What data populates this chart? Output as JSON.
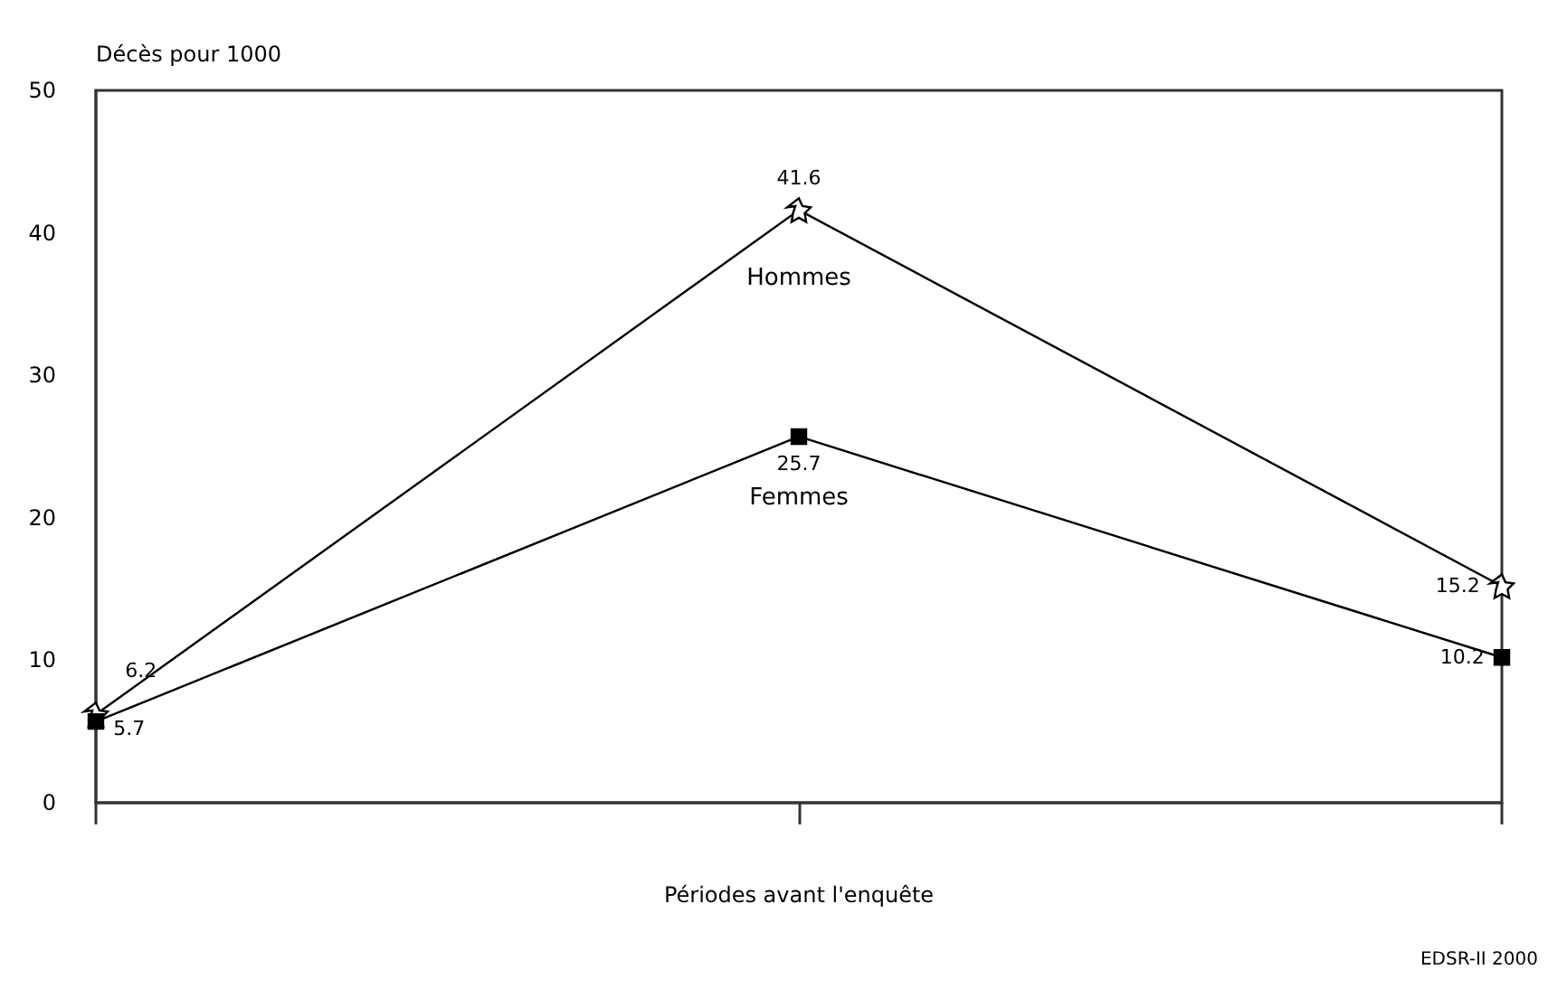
{
  "chart_data": {
    "type": "line",
    "ylabel": "Décès pour 1000",
    "xlabel": "Périodes avant l'enquête",
    "categories": [
      null,
      null,
      null
    ],
    "series": [
      {
        "name": "Hommes",
        "color": "#000000",
        "marker": "star",
        "values": [
          6.2,
          41.6,
          15.2
        ]
      },
      {
        "name": "Femmes",
        "color": "#000000",
        "marker": "square",
        "values": [
          5.7,
          25.7,
          10.2
        ]
      }
    ],
    "ylim": [
      0,
      50
    ],
    "yticks": [
      0,
      10,
      20,
      30,
      40,
      50
    ],
    "grid": false,
    "legend": false,
    "data_labels": true,
    "line_style": "solid",
    "annotations": [
      "EDSR-II 2000"
    ]
  }
}
